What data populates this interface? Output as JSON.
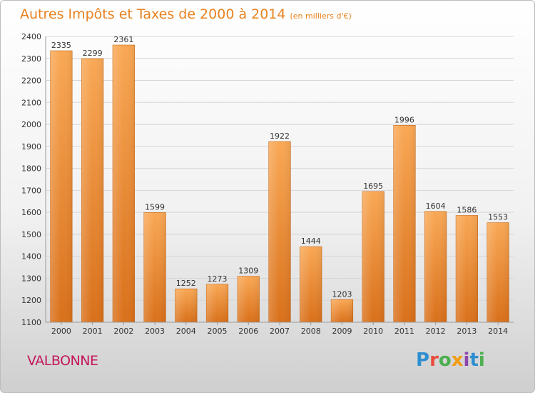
{
  "header": {
    "title": "Autres Impôts et Taxes de 2000 à 2014",
    "unit": "(en milliers d'€)"
  },
  "footer": {
    "city": "VALBONNE",
    "logo": "Proxiti"
  },
  "colors": {
    "title": "#e8821f",
    "bar_top": "#f9a855",
    "bar_bottom": "#d9701a",
    "city": "#c2185b"
  },
  "chart_data": {
    "type": "bar",
    "title": "Autres Impôts et Taxes de 2000 à 2014",
    "subtitle": "(en milliers d'€)",
    "xlabel": "",
    "ylabel": "",
    "categories": [
      "2000",
      "2001",
      "2002",
      "2003",
      "2004",
      "2005",
      "2006",
      "2007",
      "2008",
      "2009",
      "2010",
      "2011",
      "2012",
      "2013",
      "2014"
    ],
    "values": [
      2335,
      2299,
      2361,
      1599,
      1252,
      1273,
      1309,
      1922,
      1444,
      1203,
      1695,
      1996,
      1604,
      1586,
      1553
    ],
    "ylim": [
      1100,
      2400
    ],
    "yticks": [
      1100,
      1200,
      1300,
      1400,
      1500,
      1600,
      1700,
      1800,
      1900,
      2000,
      2100,
      2200,
      2300,
      2400
    ],
    "grid": true,
    "data_labels": true
  }
}
